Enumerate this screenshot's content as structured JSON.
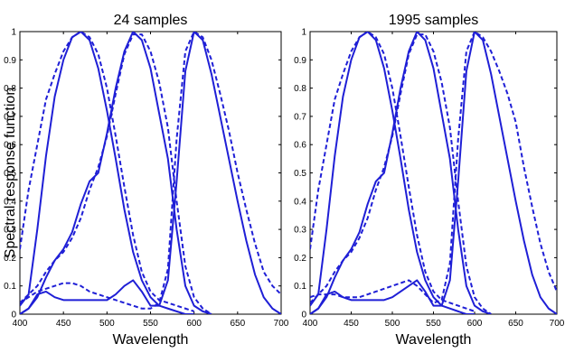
{
  "figure": {
    "ylabel": "Spectral response function",
    "line_color": "#1f1fd6"
  },
  "chart_data": [
    {
      "type": "line",
      "title": "24 samples",
      "xlabel": "Wavelength",
      "ylabel": "Spectral response function",
      "xlim": [
        400,
        700
      ],
      "ylim": [
        0,
        1
      ],
      "xticks": [
        400,
        450,
        500,
        550,
        600,
        650,
        700
      ],
      "yticks": [
        0,
        0.1,
        0.2,
        0.3,
        0.4,
        0.5,
        0.6,
        0.7,
        0.8,
        0.9,
        1
      ],
      "grid": false,
      "series": [
        {
          "style": "solid",
          "x": [
            400,
            410,
            420,
            430,
            440,
            450,
            460,
            470,
            480,
            490,
            500,
            510,
            520,
            530,
            540,
            550,
            560,
            570,
            580,
            590,
            600
          ],
          "y": [
            0.03,
            0.07,
            0.3,
            0.56,
            0.77,
            0.9,
            0.98,
            1.0,
            0.97,
            0.87,
            0.72,
            0.55,
            0.37,
            0.22,
            0.12,
            0.06,
            0.03,
            0.02,
            0.01,
            0.0,
            0.0
          ]
        },
        {
          "style": "dashed",
          "x": [
            400,
            410,
            420,
            430,
            440,
            450,
            460,
            470,
            480,
            490,
            500,
            510,
            520,
            530,
            540,
            550,
            560,
            570,
            580,
            590,
            600
          ],
          "y": [
            0.23,
            0.44,
            0.6,
            0.76,
            0.85,
            0.93,
            0.98,
            1.0,
            0.98,
            0.92,
            0.8,
            0.63,
            0.45,
            0.28,
            0.15,
            0.08,
            0.05,
            0.04,
            0.03,
            0.02,
            0.01
          ]
        },
        {
          "style": "solid",
          "x": [
            400,
            410,
            420,
            430,
            440,
            450,
            460,
            470,
            480,
            490,
            500,
            510,
            520,
            530,
            540,
            550,
            560,
            570,
            580,
            590,
            600,
            610,
            620
          ],
          "y": [
            0.0,
            0.02,
            0.06,
            0.13,
            0.19,
            0.23,
            0.29,
            0.39,
            0.47,
            0.5,
            0.64,
            0.8,
            0.93,
            1.0,
            0.97,
            0.87,
            0.71,
            0.55,
            0.3,
            0.1,
            0.03,
            0.01,
            0.0
          ]
        },
        {
          "style": "dashed",
          "x": [
            400,
            410,
            420,
            430,
            440,
            450,
            460,
            470,
            480,
            490,
            500,
            510,
            520,
            530,
            540,
            550,
            560,
            570,
            580,
            590,
            600,
            610,
            620
          ],
          "y": [
            0.04,
            0.07,
            0.1,
            0.15,
            0.19,
            0.22,
            0.27,
            0.34,
            0.44,
            0.52,
            0.63,
            0.78,
            0.92,
            0.99,
            0.99,
            0.93,
            0.82,
            0.66,
            0.4,
            0.17,
            0.06,
            0.02,
            0.0
          ]
        },
        {
          "style": "solid",
          "x": [
            400,
            410,
            420,
            430,
            440,
            450,
            460,
            470,
            480,
            490,
            500,
            510,
            520,
            530,
            540,
            550,
            560,
            570,
            580,
            590,
            600,
            610,
            620,
            630,
            640,
            650,
            660,
            670,
            680,
            690,
            700
          ],
          "y": [
            0.0,
            0.02,
            0.07,
            0.08,
            0.06,
            0.05,
            0.05,
            0.05,
            0.05,
            0.05,
            0.05,
            0.07,
            0.1,
            0.12,
            0.08,
            0.03,
            0.03,
            0.12,
            0.47,
            0.86,
            1.0,
            0.97,
            0.85,
            0.7,
            0.55,
            0.4,
            0.26,
            0.14,
            0.06,
            0.02,
            0.0
          ]
        },
        {
          "style": "dashed",
          "x": [
            400,
            410,
            420,
            430,
            440,
            450,
            460,
            470,
            480,
            490,
            500,
            510,
            520,
            530,
            540,
            550,
            560,
            570,
            580,
            590,
            600,
            610,
            620,
            630,
            640,
            650,
            660,
            670,
            680,
            690,
            700
          ],
          "y": [
            0.04,
            0.06,
            0.08,
            0.09,
            0.1,
            0.11,
            0.11,
            0.1,
            0.08,
            0.07,
            0.06,
            0.05,
            0.04,
            0.03,
            0.02,
            0.02,
            0.04,
            0.16,
            0.62,
            0.93,
            1.0,
            0.98,
            0.9,
            0.78,
            0.65,
            0.5,
            0.37,
            0.25,
            0.15,
            0.1,
            0.07
          ]
        }
      ]
    },
    {
      "type": "line",
      "title": "1995 samples",
      "xlabel": "Wavelength",
      "xlim": [
        400,
        700
      ],
      "ylim": [
        0,
        1
      ],
      "xticks": [
        400,
        450,
        500,
        550,
        600,
        650,
        700
      ],
      "yticks": [
        0,
        0.1,
        0.2,
        0.3,
        0.4,
        0.5,
        0.6,
        0.7,
        0.8,
        0.9,
        1
      ],
      "grid": false,
      "series": [
        {
          "style": "solid",
          "x": [
            400,
            410,
            420,
            430,
            440,
            450,
            460,
            470,
            480,
            490,
            500,
            510,
            520,
            530,
            540,
            550,
            560,
            570,
            580,
            590,
            600
          ],
          "y": [
            0.03,
            0.07,
            0.3,
            0.56,
            0.77,
            0.9,
            0.98,
            1.0,
            0.97,
            0.87,
            0.72,
            0.55,
            0.37,
            0.22,
            0.12,
            0.06,
            0.03,
            0.02,
            0.01,
            0.0,
            0.0
          ]
        },
        {
          "style": "dashed",
          "x": [
            400,
            410,
            420,
            430,
            440,
            450,
            460,
            470,
            480,
            490,
            500,
            510,
            520,
            530,
            540,
            550,
            560,
            570,
            580,
            590,
            600
          ],
          "y": [
            0.23,
            0.44,
            0.6,
            0.76,
            0.85,
            0.93,
            0.98,
            1.0,
            0.98,
            0.92,
            0.8,
            0.63,
            0.45,
            0.28,
            0.15,
            0.08,
            0.05,
            0.04,
            0.03,
            0.02,
            0.01
          ]
        },
        {
          "style": "solid",
          "x": [
            400,
            410,
            420,
            430,
            440,
            450,
            460,
            470,
            480,
            490,
            500,
            510,
            520,
            530,
            540,
            550,
            560,
            570,
            580,
            590,
            600,
            610,
            620
          ],
          "y": [
            0.0,
            0.02,
            0.06,
            0.13,
            0.19,
            0.23,
            0.29,
            0.39,
            0.47,
            0.5,
            0.64,
            0.8,
            0.93,
            1.0,
            0.97,
            0.87,
            0.71,
            0.55,
            0.3,
            0.1,
            0.03,
            0.01,
            0.0
          ]
        },
        {
          "style": "dashed",
          "x": [
            400,
            410,
            420,
            430,
            440,
            450,
            460,
            470,
            480,
            490,
            500,
            510,
            520,
            530,
            540,
            550,
            560,
            570,
            580,
            590,
            600,
            610,
            620
          ],
          "y": [
            0.04,
            0.07,
            0.1,
            0.15,
            0.19,
            0.22,
            0.27,
            0.34,
            0.44,
            0.52,
            0.63,
            0.78,
            0.92,
            0.99,
            0.99,
            0.93,
            0.82,
            0.66,
            0.4,
            0.17,
            0.06,
            0.02,
            0.0
          ]
        },
        {
          "style": "solid",
          "x": [
            400,
            410,
            420,
            430,
            440,
            450,
            460,
            470,
            480,
            490,
            500,
            510,
            520,
            530,
            540,
            550,
            560,
            570,
            580,
            590,
            600,
            610,
            620,
            630,
            640,
            650,
            660,
            670,
            680,
            690,
            700
          ],
          "y": [
            0.0,
            0.02,
            0.07,
            0.08,
            0.06,
            0.05,
            0.05,
            0.05,
            0.05,
            0.05,
            0.06,
            0.08,
            0.1,
            0.12,
            0.08,
            0.03,
            0.03,
            0.12,
            0.47,
            0.86,
            1.0,
            0.97,
            0.85,
            0.7,
            0.55,
            0.4,
            0.26,
            0.14,
            0.06,
            0.02,
            0.0
          ]
        },
        {
          "style": "dashed",
          "x": [
            400,
            410,
            420,
            430,
            440,
            450,
            460,
            470,
            480,
            490,
            500,
            510,
            520,
            530,
            540,
            550,
            560,
            570,
            580,
            590,
            600,
            610,
            620,
            630,
            640,
            650,
            660,
            670,
            680,
            690,
            700
          ],
          "y": [
            0.06,
            0.07,
            0.07,
            0.07,
            0.06,
            0.06,
            0.06,
            0.07,
            0.08,
            0.09,
            0.1,
            0.11,
            0.12,
            0.1,
            0.07,
            0.04,
            0.05,
            0.18,
            0.62,
            0.93,
            1.0,
            0.98,
            0.93,
            0.86,
            0.78,
            0.68,
            0.52,
            0.38,
            0.25,
            0.15,
            0.08
          ]
        }
      ]
    }
  ]
}
